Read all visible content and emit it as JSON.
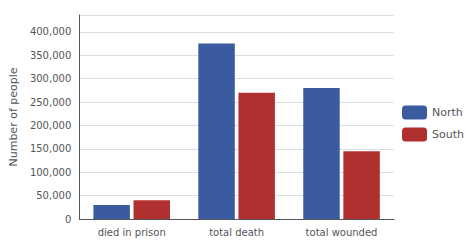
{
  "chart_data": {
    "type": "bar",
    "categories": [
      "died in prison",
      "total death",
      "total wounded"
    ],
    "series": [
      {
        "name": "North",
        "color": "#3A5BA0",
        "values": [
          30000,
          375000,
          280000
        ]
      },
      {
        "name": "South",
        "color": "#B03030",
        "values": [
          40000,
          270000,
          145000
        ]
      }
    ],
    "ylabel": "Number of people",
    "ylim": [
      0,
      436170
    ],
    "yticks": [
      0,
      {
        "value": 50000,
        "label": "50,000"
      },
      {
        "value": 100000,
        "label": "100,000"
      },
      {
        "value": 150000,
        "label": "150,000"
      },
      {
        "value": 200000,
        "label": "200,000"
      },
      {
        "value": 250000,
        "label": "250,000"
      },
      {
        "value": 300000,
        "label": "300,000"
      },
      {
        "value": 350000,
        "label": "350,000"
      },
      {
        "value": 400000,
        "label": "400,000"
      }
    ],
    "grid": true,
    "legend": "right"
  }
}
